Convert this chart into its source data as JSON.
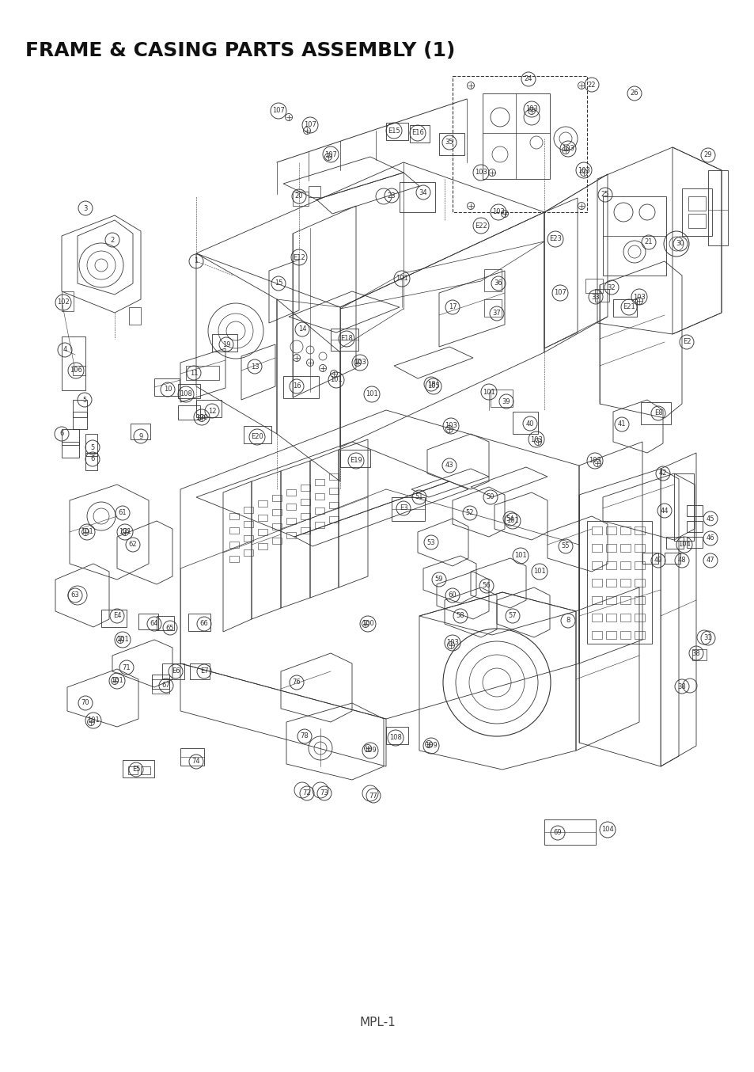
{
  "title": "FRAME & CASING PARTS ASSEMBLY (1)",
  "footer": "MPL-1",
  "bg_color": "#ffffff",
  "title_color": "#111111",
  "title_fontsize": 18,
  "footer_fontsize": 11,
  "line_color": "#333333",
  "figsize": [
    9.54,
    13.54
  ],
  "dpi": 100,
  "labels": [
    [
      "1",
      248,
      330
    ],
    [
      "2",
      142,
      303
    ],
    [
      "3",
      108,
      263
    ],
    [
      "4",
      82,
      442
    ],
    [
      "5",
      107,
      505
    ],
    [
      "5",
      117,
      565
    ],
    [
      "6",
      78,
      548
    ],
    [
      "6",
      117,
      580
    ],
    [
      "8",
      718,
      784
    ],
    [
      "9",
      178,
      551
    ],
    [
      "10",
      212,
      492
    ],
    [
      "11",
      245,
      471
    ],
    [
      "12",
      268,
      519
    ],
    [
      "13",
      322,
      463
    ],
    [
      "14",
      382,
      416
    ],
    [
      "15",
      352,
      358
    ],
    [
      "16",
      375,
      488
    ],
    [
      "17",
      572,
      388
    ],
    [
      "18",
      545,
      485
    ],
    [
      "19",
      286,
      435
    ],
    [
      "20",
      378,
      248
    ],
    [
      "21",
      820,
      306
    ],
    [
      "22",
      748,
      107
    ],
    [
      "23",
      495,
      247
    ],
    [
      "24",
      668,
      100
    ],
    [
      "25",
      765,
      246
    ],
    [
      "26",
      802,
      118
    ],
    [
      "29",
      895,
      196
    ],
    [
      "30",
      860,
      308
    ],
    [
      "31",
      895,
      806
    ],
    [
      "32",
      773,
      363
    ],
    [
      "33",
      753,
      375
    ],
    [
      "34",
      535,
      243
    ],
    [
      "35",
      568,
      180
    ],
    [
      "36",
      630,
      358
    ],
    [
      "37",
      628,
      396
    ],
    [
      "38",
      880,
      825
    ],
    [
      "38",
      862,
      867
    ],
    [
      "39",
      640,
      507
    ],
    [
      "40",
      670,
      535
    ],
    [
      "41",
      786,
      536
    ],
    [
      "42",
      838,
      598
    ],
    [
      "43",
      568,
      588
    ],
    [
      "44",
      840,
      645
    ],
    [
      "45",
      898,
      655
    ],
    [
      "46",
      898,
      680
    ],
    [
      "47",
      898,
      708
    ],
    [
      "48",
      862,
      708
    ],
    [
      "49",
      832,
      708
    ],
    [
      "50",
      620,
      628
    ],
    [
      "51",
      530,
      628
    ],
    [
      "52",
      594,
      648
    ],
    [
      "53",
      545,
      685
    ],
    [
      "54",
      645,
      655
    ],
    [
      "55",
      715,
      690
    ],
    [
      "56",
      615,
      740
    ],
    [
      "57",
      648,
      778
    ],
    [
      "58",
      582,
      778
    ],
    [
      "59",
      555,
      732
    ],
    [
      "60",
      572,
      752
    ],
    [
      "61",
      155,
      648
    ],
    [
      "62",
      168,
      688
    ],
    [
      "63",
      95,
      752
    ],
    [
      "64",
      195,
      788
    ],
    [
      "65",
      215,
      793
    ],
    [
      "66",
      258,
      788
    ],
    [
      "67",
      210,
      866
    ],
    [
      "69",
      705,
      1052
    ],
    [
      "70",
      108,
      888
    ],
    [
      "71",
      160,
      843
    ],
    [
      "72",
      388,
      1002
    ],
    [
      "73",
      410,
      1002
    ],
    [
      "74",
      248,
      962
    ],
    [
      "76",
      375,
      862
    ],
    [
      "77",
      472,
      1005
    ],
    [
      "78",
      385,
      930
    ],
    [
      "100",
      255,
      527
    ],
    [
      "100",
      465,
      788
    ],
    [
      "101",
      508,
      352
    ],
    [
      "101",
      425,
      480
    ],
    [
      "101",
      470,
      498
    ],
    [
      "101",
      110,
      672
    ],
    [
      "101",
      158,
      672
    ],
    [
      "101",
      155,
      808
    ],
    [
      "101",
      148,
      860
    ],
    [
      "101",
      118,
      910
    ],
    [
      "101",
      648,
      658
    ],
    [
      "101",
      658,
      702
    ],
    [
      "101",
      682,
      722
    ],
    [
      "101",
      618,
      495
    ],
    [
      "102",
      80,
      382
    ],
    [
      "103",
      672,
      138
    ],
    [
      "103",
      718,
      188
    ],
    [
      "103",
      738,
      215
    ],
    [
      "103",
      608,
      218
    ],
    [
      "103",
      630,
      268
    ],
    [
      "103",
      808,
      375
    ],
    [
      "103",
      570,
      538
    ],
    [
      "103",
      678,
      555
    ],
    [
      "103",
      752,
      582
    ],
    [
      "103",
      455,
      458
    ],
    [
      "103",
      572,
      812
    ],
    [
      "104",
      865,
      688
    ],
    [
      "104",
      768,
      1048
    ],
    [
      "105",
      548,
      488
    ],
    [
      "106",
      96,
      468
    ],
    [
      "107",
      352,
      140
    ],
    [
      "107",
      392,
      158
    ],
    [
      "107",
      418,
      195
    ],
    [
      "107",
      708,
      370
    ],
    [
      "108",
      235,
      498
    ],
    [
      "108",
      500,
      932
    ],
    [
      "109",
      545,
      942
    ],
    [
      "109",
      468,
      948
    ],
    [
      "E2",
      868,
      432
    ],
    [
      "E3",
      510,
      642
    ],
    [
      "E4",
      148,
      778
    ],
    [
      "E5",
      172,
      972
    ],
    [
      "E6",
      222,
      848
    ],
    [
      "E7",
      258,
      848
    ],
    [
      "E8",
      832,
      522
    ],
    [
      "E12",
      378,
      325
    ],
    [
      "E15",
      498,
      165
    ],
    [
      "E16",
      528,
      168
    ],
    [
      "E18",
      438,
      428
    ],
    [
      "E19",
      450,
      582
    ],
    [
      "E20",
      325,
      552
    ],
    [
      "E21",
      795,
      388
    ],
    [
      "E22",
      608,
      285
    ],
    [
      "E23",
      702,
      302
    ]
  ]
}
